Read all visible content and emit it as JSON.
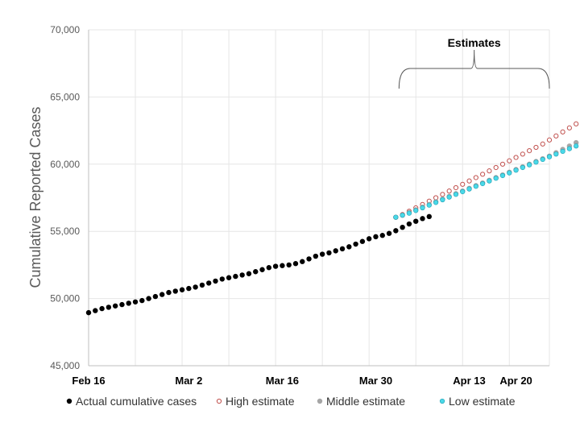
{
  "chart_data": {
    "type": "scatter",
    "title": "",
    "xlabel": "",
    "ylabel": "Cumulative Reported Cases",
    "ylim": [
      45000,
      70000
    ],
    "yticks": [
      "45,000",
      "50,000",
      "55,000",
      "60,000",
      "65,000",
      "70,000"
    ],
    "xlim": [
      "Feb 16",
      "Apr 25"
    ],
    "xticks": [
      {
        "label": "Feb 16",
        "date": "Feb 16"
      },
      {
        "label": "Mar 2",
        "date": "Mar 2"
      },
      {
        "label": "Mar 16",
        "date": "Mar 16"
      },
      {
        "label": "Mar 30",
        "date": "Mar 30"
      },
      {
        "label": "Apr 13",
        "date": "Apr 13"
      },
      {
        "label": "Apr 20",
        "date": "Apr 20"
      }
    ],
    "grid": true,
    "legend_position": "bottom",
    "annotation": {
      "text": "Estimates",
      "from": "Apr 2",
      "to": "Apr 25"
    },
    "series": [
      {
        "name": "Actual cumulative cases",
        "color": "#000000",
        "marker": "filled",
        "x_start": "Feb 16",
        "values": [
          48950,
          49100,
          49250,
          49350,
          49450,
          49550,
          49650,
          49750,
          49850,
          50000,
          50150,
          50300,
          50450,
          50550,
          50650,
          50750,
          50850,
          51000,
          51150,
          51300,
          51450,
          51550,
          51650,
          51750,
          51850,
          52000,
          52150,
          52300,
          52400,
          52450,
          52500,
          52600,
          52750,
          52950,
          53150,
          53300,
          53400,
          53550,
          53700,
          53850,
          54050,
          54250,
          54450,
          54600,
          54700,
          54850,
          55050,
          55300,
          55550,
          55750,
          55950,
          56100
        ]
      },
      {
        "name": "High estimate",
        "color": "#c0504d",
        "marker": "hollow",
        "x_start": "Apr 2",
        "values": [
          56050,
          56250,
          56500,
          56750,
          57000,
          57250,
          57500,
          57750,
          58000,
          58250,
          58500,
          58750,
          59000,
          59250,
          59500,
          59750,
          60000,
          60250,
          60500,
          60750,
          61000,
          61250,
          61500,
          61800,
          62100,
          62400,
          62700,
          63000,
          63300,
          63500,
          63800
        ]
      },
      {
        "name": "Middle estimate",
        "color": "#a6a6a6",
        "marker": "filled",
        "x_start": "Apr 2",
        "values": [
          56050,
          56200,
          56400,
          56600,
          56800,
          57000,
          57200,
          57400,
          57600,
          57800,
          58000,
          58200,
          58400,
          58600,
          58800,
          59000,
          59200,
          59400,
          59600,
          59800,
          60000,
          60200,
          60400,
          60600,
          60850,
          61100,
          61350,
          61600,
          61850,
          62100,
          62350
        ]
      },
      {
        "name": "Low estimate",
        "color": "#4ad9e8",
        "marker": "filled-outline",
        "x_start": "Apr 2",
        "values": [
          56050,
          56200,
          56350,
          56550,
          56750,
          56950,
          57150,
          57350,
          57550,
          57750,
          57950,
          58150,
          58350,
          58550,
          58750,
          58950,
          59150,
          59350,
          59550,
          59750,
          59950,
          60150,
          60350,
          60550,
          60750,
          60950,
          61150,
          61350,
          61550,
          61700,
          61850
        ]
      }
    ]
  }
}
